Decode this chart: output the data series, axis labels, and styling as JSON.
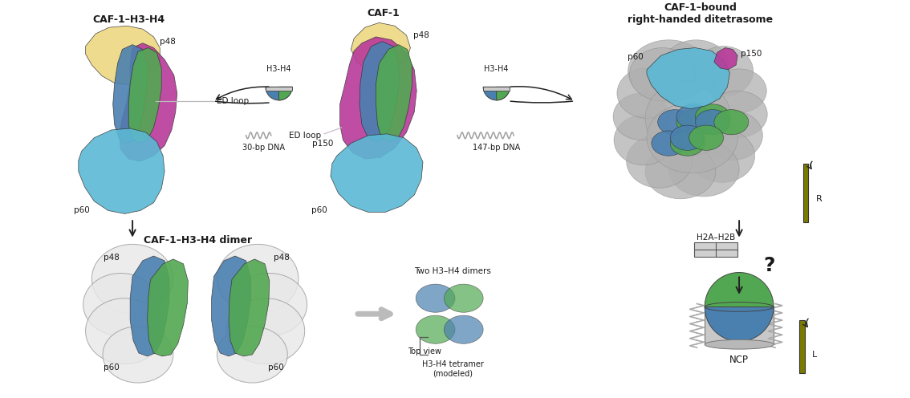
{
  "fig_width": 11.34,
  "fig_height": 4.96,
  "dpi": 100,
  "colors": {
    "p48_yellow": "#EED882",
    "p150_magenta": "#B8399A",
    "p60_cyan": "#5BB8D4",
    "h3_blue": "#4A80B0",
    "h4_green": "#52A852",
    "gray_nuc": "#B0B0B0",
    "gray_light": "#C8C8C8",
    "white_outline": "#E8E8E8",
    "background": "#FFFFFF",
    "text_color": "#1A1A1A",
    "arrow_color": "#222222",
    "dna_color": "#A0A0A0",
    "olive": "#7A7A00",
    "pink_light": "#E0A8C8"
  },
  "panel_titles": {
    "top_left": "CAF-1–H3-H4",
    "top_center": "CAF-1",
    "top_right": "CAF-1–bound\nright-handed ditetrasome",
    "bottom_left": "CAF-1–H3-H4 dimer"
  },
  "labels": {
    "p48": "p48",
    "p60": "p60",
    "p150": "p150",
    "ed_loop": "ED loop",
    "h3h4": "H3-H4",
    "h2ah2b": "H2A–H2B",
    "dna_30": "30-bp DNA",
    "dna_147": "147-bp DNA",
    "ncp": "NCP",
    "R": "R",
    "L": "L",
    "question": "?",
    "two_dimers": "Two H3–H4 dimers",
    "top_view": "Top view",
    "tetramer": "H3-H4 tetramer\n(modeled)"
  }
}
